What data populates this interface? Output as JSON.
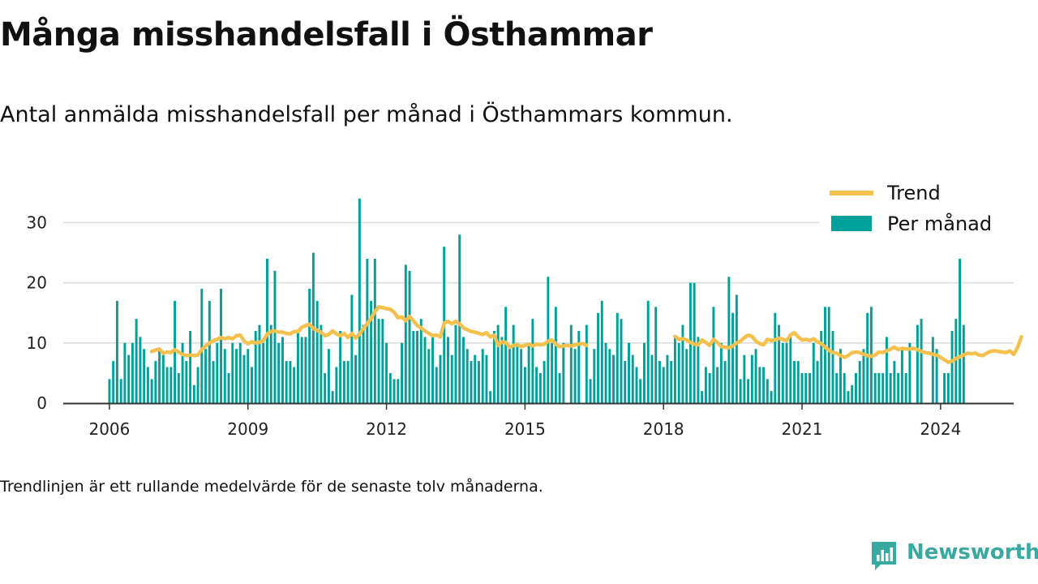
{
  "header": {
    "title": "Många misshandelsfall i Östhammar",
    "subtitle": "Antal anmälda misshandelsfall per månad i Östhammars kommun."
  },
  "footer": {
    "note": "Trendlinjen är ett rullande medelvärde för de senaste tolv månaderna."
  },
  "brand": {
    "name": "Newsworthy",
    "icon": "newsworthy-chart-icon",
    "color": "#3aa9a1"
  },
  "colors": {
    "bars": "#00a19a",
    "trend": "#f5c14e",
    "grid": "#d9d9d9",
    "axis": "#333333"
  },
  "chart_data": {
    "type": "bar",
    "title": "Många misshandelsfall i Östhammar",
    "subtitle": "Antal anmälda misshandelsfall per månad i Östhammars kommun.",
    "xlabel": "",
    "ylabel": "",
    "x_start": "2006-01",
    "x_end": "2024-07",
    "xlim": [
      "2005-01",
      "2025-08"
    ],
    "ylim": [
      0,
      36
    ],
    "x_ticks": [
      "2006",
      "2009",
      "2012",
      "2015",
      "2018",
      "2021",
      "2024"
    ],
    "y_ticks": [
      0,
      10,
      20,
      30
    ],
    "grid": "horizontal",
    "legend": "top-right",
    "series": [
      {
        "name": "Per månad",
        "type": "bar",
        "color": "#00a19a",
        "values": [
          4,
          7,
          17,
          4,
          10,
          8,
          10,
          14,
          11,
          9,
          6,
          4,
          7,
          9,
          8,
          6,
          6,
          17,
          5,
          10,
          7,
          12,
          3,
          6,
          19,
          9,
          17,
          7,
          10,
          19,
          9,
          5,
          10,
          9,
          10,
          8,
          9,
          6,
          12,
          13,
          10,
          24,
          13,
          22,
          10,
          11,
          7,
          7,
          6,
          12,
          11,
          11,
          19,
          25,
          17,
          13,
          5,
          9,
          2,
          6,
          12,
          7,
          7,
          18,
          8,
          34,
          13,
          24,
          17,
          24,
          14,
          14,
          10,
          5,
          4,
          4,
          10,
          23,
          22,
          12,
          12,
          14,
          11,
          9,
          11,
          6,
          8,
          26,
          11,
          8,
          13,
          28,
          11,
          9,
          7,
          8,
          7,
          9,
          8,
          2,
          12,
          13,
          11,
          16,
          9,
          13,
          10,
          9,
          6,
          10,
          14,
          6,
          5,
          7,
          21,
          10,
          16,
          5,
          10,
          null,
          13,
          9,
          12,
          null,
          13,
          4,
          9,
          15,
          17,
          10,
          9,
          8,
          15,
          14,
          7,
          10,
          8,
          6,
          4,
          10,
          17,
          8,
          16,
          7,
          6,
          8,
          7,
          11,
          10,
          13,
          9,
          20,
          20,
          11,
          2,
          6,
          5,
          16,
          6,
          10,
          7,
          21,
          15,
          18,
          4,
          8,
          4,
          8,
          9,
          6,
          6,
          4,
          2,
          15,
          13,
          10,
          10,
          11,
          7,
          7,
          5,
          5,
          5,
          10,
          7,
          12,
          16,
          16,
          12,
          5,
          9,
          5,
          2,
          3,
          5,
          7,
          9,
          15,
          16,
          5,
          5,
          5,
          11,
          5,
          7,
          5,
          9,
          5,
          10,
          null,
          13,
          14,
          null,
          null,
          11,
          9,
          null,
          5,
          5,
          12,
          14,
          24,
          13
        ]
      },
      {
        "name": "Trend",
        "type": "line",
        "color": "#f5c14e",
        "start": "2006-12",
        "values": [
          8.6,
          8.8,
          9.0,
          8.3,
          8.5,
          8.4,
          8.9,
          8.5,
          8.1,
          7.9,
          8.0,
          7.9,
          8.0,
          8.9,
          9.5,
          10.0,
          10.4,
          10.6,
          10.9,
          10.7,
          10.9,
          10.7,
          11.2,
          11.3,
          10.3,
          9.9,
          10.2,
          10.0,
          10.1,
          10.4,
          11.5,
          11.9,
          12.0,
          11.8,
          11.8,
          11.6,
          11.5,
          11.9,
          11.9,
          12.6,
          12.9,
          13.1,
          12.4,
          12.1,
          11.8,
          11.2,
          11.4,
          12.0,
          11.5,
          11.2,
          11.6,
          10.9,
          11.6,
          10.8,
          11.5,
          12.4,
          13.2,
          14.1,
          15.2,
          16.0,
          15.9,
          15.7,
          15.6,
          15.1,
          14.2,
          14.3,
          13.7,
          14.4,
          13.7,
          12.9,
          12.5,
          12.0,
          11.6,
          11.2,
          11.3,
          11.0,
          13.3,
          13.6,
          13.2,
          13.6,
          13.2,
          12.5,
          12.2,
          11.9,
          11.8,
          11.6,
          11.4,
          11.7,
          11.0,
          11.3,
          9.6,
          10.2,
          10.1,
          9.3,
          9.6,
          9.7,
          9.4,
          9.6,
          9.8,
          9.5,
          9.8,
          9.7,
          9.8,
          10.3,
          10.5,
          9.8,
          9.4,
          9.5,
          9.6,
          9.5,
          9.7,
          9.8,
          9.9,
          9.6,
          null,
          null,
          null,
          null,
          null,
          null,
          null,
          null,
          null,
          null,
          null,
          null,
          null,
          null,
          null,
          null,
          null,
          null,
          null,
          null,
          null,
          null,
          11.1,
          10.6,
          10.7,
          10.5,
          10.1,
          9.8,
          9.7,
          10.5,
          10.1,
          9.6,
          10.6,
          10.1,
          9.4,
          9.3,
          9.2,
          9.5,
          10.0,
          10.3,
          10.9,
          11.3,
          11.1,
          10.3,
          9.9,
          9.7,
          10.6,
          10.4,
          10.5,
          10.8,
          10.6,
          10.4,
          11.3,
          11.7,
          11.0,
          10.5,
          10.6,
          10.4,
          10.7,
          10.2,
          9.9,
          9.3,
          8.8,
          8.4,
          8.3,
          7.9,
          7.6,
          7.9,
          8.4,
          8.5,
          8.4,
          8.1,
          7.9,
          7.8,
          8.0,
          8.5,
          8.4,
          8.7,
          9.0,
          9.3,
          8.9,
          9.1,
          9.0,
          9.0,
          9.1,
          8.9,
          8.6,
          8.4,
          8.3,
          8.1,
          8.0,
          7.6,
          7.2,
          6.8,
          7.0,
          7.4,
          7.7,
          8.0,
          8.3,
          8.2,
          8.3,
          8.0,
          7.9,
          8.3,
          8.6,
          8.7,
          8.6,
          8.5,
          8.4,
          8.7,
          8.1,
          9.2,
          11.0
        ]
      }
    ]
  }
}
